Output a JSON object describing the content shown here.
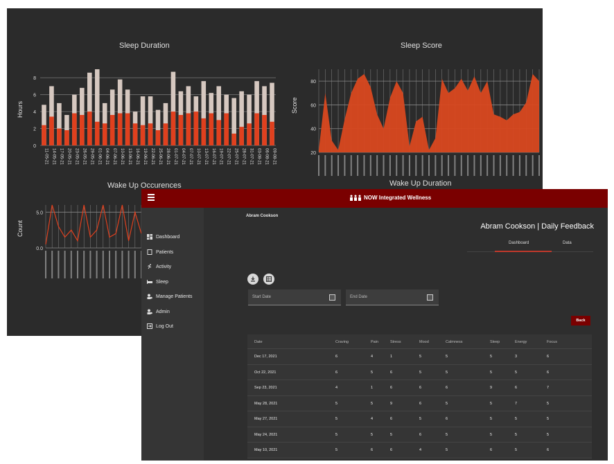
{
  "back_window": {
    "sleep_duration": {
      "title": "Sleep Duration",
      "ylabel": "Hours",
      "yticks": [
        "0",
        "2",
        "4",
        "6",
        "8"
      ],
      "x_labels": [
        "11-05-21",
        "14-05-21",
        "17-05-21",
        "20-05-21",
        "23-05-21",
        "26-05-21",
        "29-05-21",
        "01-06-21",
        "04-06-21",
        "07-06-21",
        "10-06-21",
        "13-06-21",
        "16-06-21",
        "19-06-21",
        "22-06-21",
        "25-06-21",
        "28-06-21",
        "01-07-21",
        "04-07-21",
        "07-07-21",
        "10-07-21",
        "13-07-21",
        "16-07-21",
        "19-07-21",
        "22-07-21",
        "25-07-21",
        "28-07-21",
        "31-07-21",
        "03-08-21",
        "06-08-21",
        "09-08-21"
      ]
    },
    "sleep_score": {
      "title": "Sleep Score",
      "ylabel": "Score",
      "yticks": [
        "20",
        "40",
        "60",
        "80"
      ]
    },
    "wake_up_occurences": {
      "title": "Wake Up Occurences",
      "ylabel": "Count",
      "yticks": [
        "0.0",
        "5.0"
      ]
    },
    "wake_up_duration": {
      "title": "Wake Up Duration"
    }
  },
  "chart_data": [
    {
      "type": "bar",
      "title": "Sleep Duration",
      "ylabel": "Hours",
      "ylim": [
        0,
        9
      ],
      "series": [
        {
          "values": [
            4.8,
            7.0,
            5.0,
            3.6,
            6.0,
            6.8,
            8.6,
            9.0,
            5.0,
            6.6,
            7.8,
            6.6,
            4.0,
            5.8,
            5.8,
            4.2,
            5.0,
            8.7,
            6.4,
            7.0,
            5.8,
            7.6,
            6.2,
            7.0,
            6.0,
            5.6,
            6.4,
            6.0,
            7.6,
            7.0,
            7.4
          ]
        },
        {
          "values": [
            2.4,
            3.4,
            2.0,
            1.8,
            3.8,
            3.6,
            4.0,
            2.8,
            2.6,
            3.6,
            3.8,
            3.8,
            2.6,
            2.4,
            2.6,
            1.8,
            2.6,
            4.0,
            3.6,
            3.8,
            4.0,
            3.2,
            3.8,
            3.0,
            3.8,
            1.4,
            2.2,
            2.6,
            3.8,
            3.6,
            2.8
          ]
        }
      ]
    },
    {
      "type": "area",
      "title": "Sleep Score",
      "ylabel": "Score",
      "ylim": [
        20,
        90
      ],
      "values": [
        22,
        70,
        30,
        22,
        48,
        70,
        82,
        86,
        75,
        52,
        40,
        66,
        80,
        70,
        25,
        46,
        50,
        22,
        32,
        82,
        70,
        74,
        82,
        72,
        84,
        70,
        80,
        52,
        50,
        47,
        52,
        54,
        62,
        86,
        80
      ]
    },
    {
      "type": "line",
      "title": "Wake Up Occurences",
      "ylabel": "Count",
      "ylim": [
        0,
        6
      ],
      "values": [
        0.5,
        6.0,
        3.0,
        1.5,
        2.5,
        1.0,
        6.0,
        1.5,
        2.5,
        6.0,
        1.5,
        2.0,
        6.0,
        1.0,
        5.0,
        2.0
      ]
    }
  ],
  "topbar": {
    "title": "NOW Integrated Wellness"
  },
  "sidebar": {
    "items": [
      {
        "label": "Dashboard"
      },
      {
        "label": "Patients"
      },
      {
        "label": "Activity"
      },
      {
        "label": "Sleep"
      },
      {
        "label": "Manage Patients"
      },
      {
        "label": "Admin"
      },
      {
        "label": "Log Out"
      }
    ]
  },
  "main": {
    "patient_name": "Abram Cookson",
    "heading": "Abram Cookson | Daily Feedback",
    "tabs": [
      {
        "label": "Dashboard"
      },
      {
        "label": "Data"
      }
    ],
    "start_date_placeholder": "Start Date",
    "end_date_placeholder": "End Date",
    "back_label": "Back"
  },
  "table": {
    "headers": [
      "Date",
      "Craving",
      "Pain",
      "Stress",
      "Mood",
      "Calmness",
      "Sleep",
      "Energy",
      "Focus"
    ],
    "rows": [
      [
        "Dec 17, 2021",
        "6",
        "4",
        "1",
        "5",
        "5",
        "5",
        "3",
        "6"
      ],
      [
        "Oct 22, 2021",
        "6",
        "5",
        "6",
        "5",
        "5",
        "5",
        "5",
        "6"
      ],
      [
        "Sep 23, 2021",
        "4",
        "1",
        "6",
        "6",
        "6",
        "9",
        "6",
        "7"
      ],
      [
        "May 28, 2021",
        "5",
        "5",
        "9",
        "6",
        "5",
        "5",
        "7",
        "5"
      ],
      [
        "May 27, 2021",
        "5",
        "4",
        "6",
        "5",
        "6",
        "5",
        "5",
        "5"
      ],
      [
        "May 24, 2021",
        "5",
        "5",
        "5",
        "6",
        "5",
        "5",
        "5",
        "5"
      ],
      [
        "May 10, 2021",
        "5",
        "6",
        "6",
        "4",
        "5",
        "6",
        "5",
        "6"
      ]
    ]
  },
  "colors": {
    "accent": "#7a0000",
    "bar_light": "#d6c8c0",
    "bar_dark": "#e0401e",
    "area": "#d9481f"
  }
}
